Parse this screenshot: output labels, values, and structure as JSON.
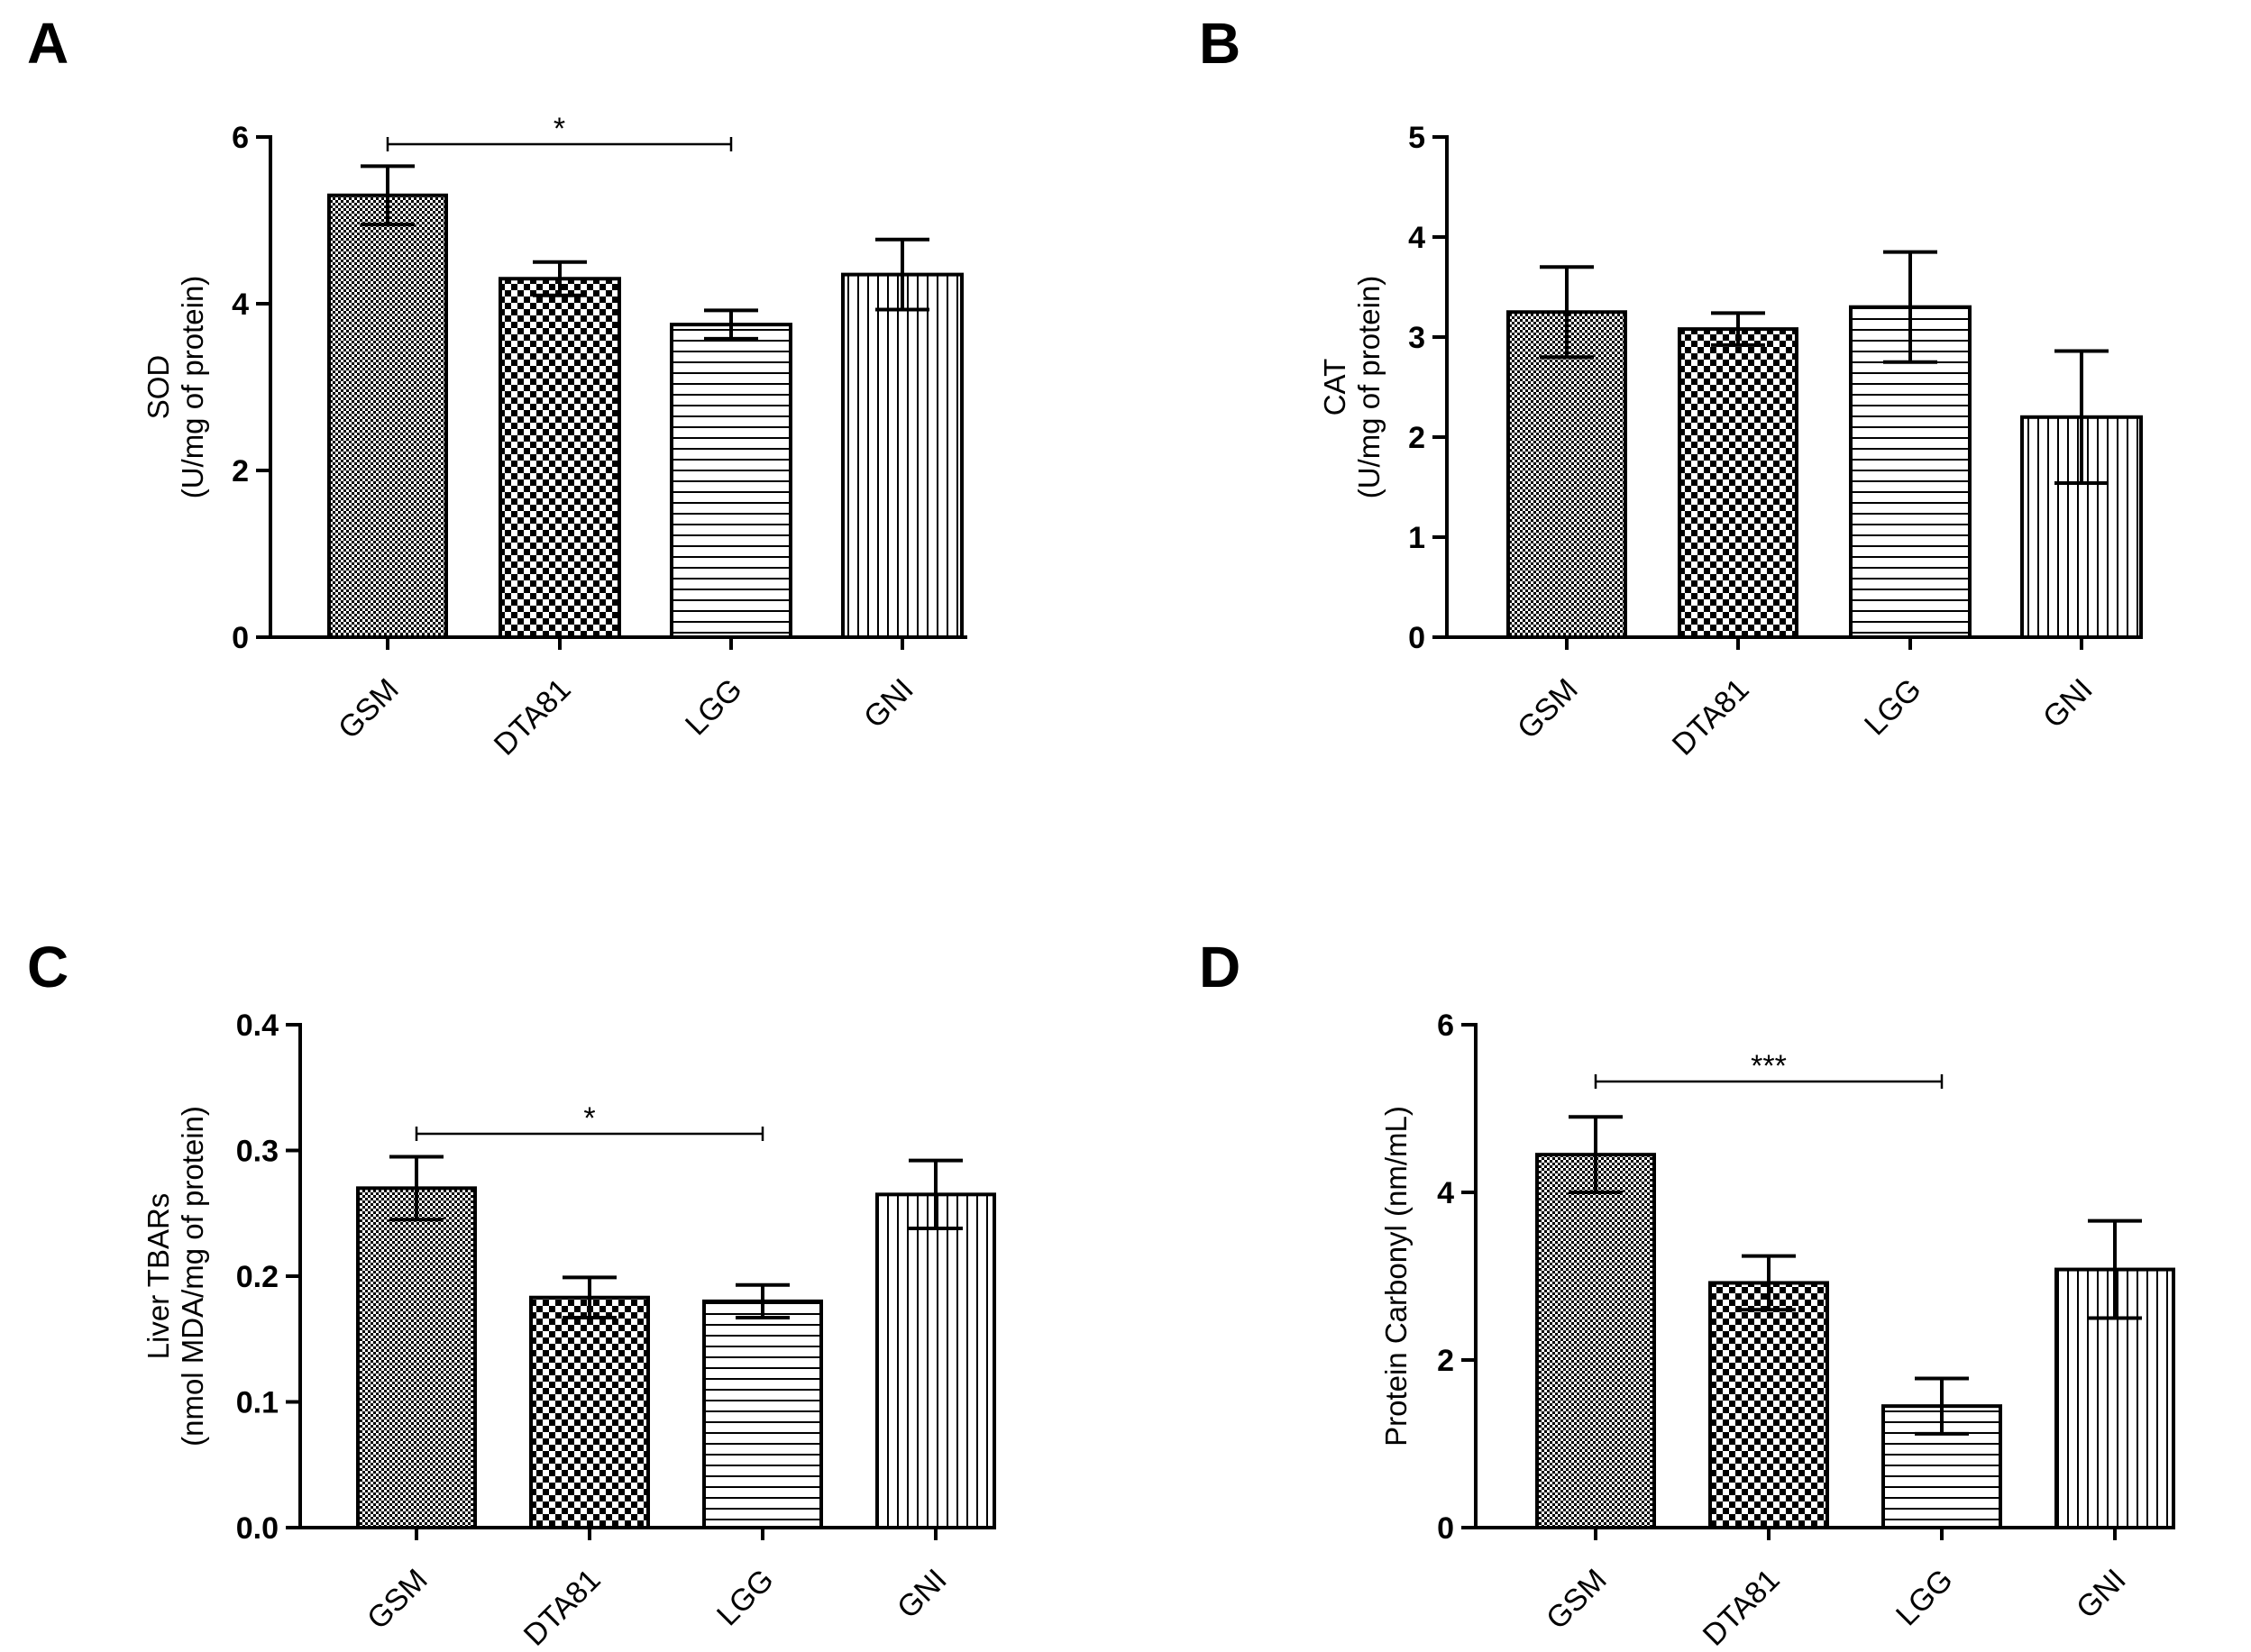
{
  "chart_data": [
    {
      "type": "bar",
      "panel": "A",
      "categories": [
        "GSM",
        "DTA81",
        "LGG",
        "GNI"
      ],
      "values": [
        5.3,
        4.3,
        3.75,
        4.35
      ],
      "errors": [
        0.35,
        0.2,
        0.17,
        0.42
      ],
      "patterns": [
        "fine-check",
        "checker",
        "horizontal",
        "vertical"
      ],
      "ylabel": [
        "SOD",
        "(U/mg of protein)"
      ],
      "ylim": [
        0,
        6
      ],
      "yticks": [
        0,
        2,
        4,
        6
      ],
      "ytick_labels": [
        "0",
        "2",
        "4",
        "6"
      ],
      "significance": [
        {
          "from": "GSM",
          "to": "LGG",
          "label": "*"
        }
      ]
    },
    {
      "type": "bar",
      "panel": "B",
      "categories": [
        "GSM",
        "DTA81",
        "LGG",
        "GNI"
      ],
      "values": [
        3.25,
        3.08,
        3.3,
        2.2
      ],
      "errors": [
        0.45,
        0.16,
        0.55,
        0.66
      ],
      "patterns": [
        "fine-check",
        "checker",
        "horizontal",
        "vertical"
      ],
      "ylabel": [
        "CAT",
        "(U/mg of protein)"
      ],
      "ylim": [
        0,
        5
      ],
      "yticks": [
        0,
        1,
        2,
        3,
        4,
        5
      ],
      "ytick_labels": [
        "0",
        "1",
        "2",
        "3",
        "4",
        "5"
      ],
      "significance": []
    },
    {
      "type": "bar",
      "panel": "C",
      "categories": [
        "GSM",
        "DTA81",
        "LGG",
        "GNI"
      ],
      "values": [
        0.27,
        0.183,
        0.18,
        0.265
      ],
      "errors": [
        0.025,
        0.016,
        0.013,
        0.027
      ],
      "patterns": [
        "fine-check",
        "checker",
        "horizontal",
        "vertical"
      ],
      "ylabel": [
        "Liver TBARs",
        "(nmol MDA/mg of protein)"
      ],
      "ylim": [
        0,
        0.4
      ],
      "yticks": [
        0,
        0.1,
        0.2,
        0.3,
        0.4
      ],
      "ytick_labels": [
        "0.0",
        "0.1",
        "0.2",
        "0.3",
        "0.4"
      ],
      "significance": [
        {
          "from": "GSM",
          "to": "LGG",
          "label": "*"
        }
      ]
    },
    {
      "type": "bar",
      "panel": "D",
      "categories": [
        "GSM",
        "DTA81",
        "LGG",
        "GNI"
      ],
      "values": [
        4.45,
        2.92,
        1.45,
        3.08
      ],
      "errors": [
        0.45,
        0.32,
        0.33,
        0.58
      ],
      "patterns": [
        "fine-check",
        "checker",
        "horizontal",
        "vertical"
      ],
      "ylabel": [
        "Protein Carbonyl (nm/mL)"
      ],
      "ylim": [
        0,
        6
      ],
      "yticks": [
        0,
        2,
        4,
        6
      ],
      "ytick_labels": [
        "0",
        "2",
        "4",
        "6"
      ],
      "significance": [
        {
          "from": "GSM",
          "to": "LGG",
          "label": "***"
        }
      ]
    }
  ],
  "colors": {
    "ink": "#000000",
    "bar_fill": "#ffffff",
    "hatch": "#000000"
  }
}
